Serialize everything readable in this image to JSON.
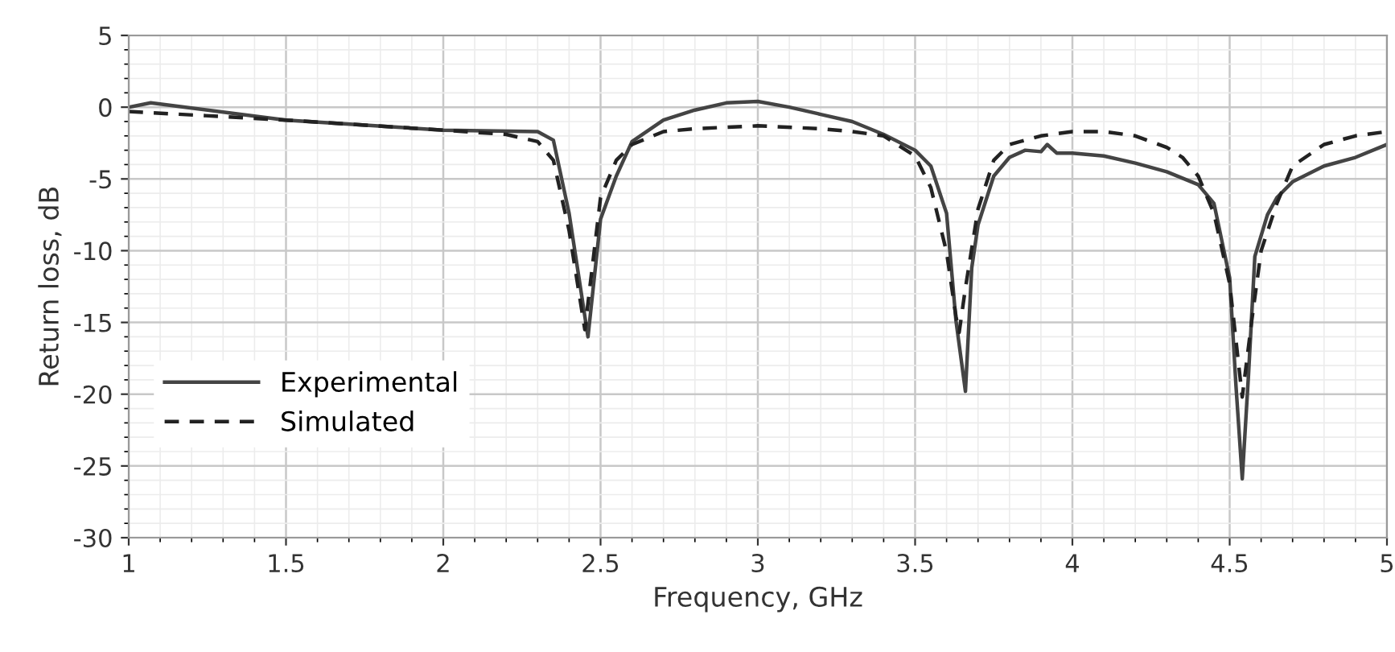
{
  "chart_data": {
    "type": "line",
    "xlabel": "Frequency, GHz",
    "ylabel": "Return loss, dB",
    "xlim": [
      1,
      5
    ],
    "xticks": [
      1,
      1.5,
      2,
      2.5,
      3,
      3.5,
      4,
      4.5,
      5
    ],
    "ylim": [
      -30,
      5
    ],
    "yticks": [
      -30,
      -25,
      -20,
      -15,
      -10,
      -5,
      0,
      5
    ],
    "grid": true,
    "legend": "bottom left",
    "series": [
      {
        "name": "Experimental",
        "color": "#444444",
        "line_style": "solid",
        "x": [
          1.0,
          1.07,
          1.5,
          2.0,
          2.3,
          2.35,
          2.4,
          2.46,
          2.5,
          2.55,
          2.6,
          2.7,
          2.8,
          2.9,
          3.0,
          3.1,
          3.2,
          3.3,
          3.4,
          3.5,
          3.55,
          3.6,
          3.63,
          3.66,
          3.68,
          3.7,
          3.75,
          3.8,
          3.85,
          3.9,
          3.92,
          3.95,
          4.0,
          4.1,
          4.2,
          4.3,
          4.4,
          4.45,
          4.5,
          4.52,
          4.54,
          4.56,
          4.58,
          4.62,
          4.65,
          4.7,
          4.8,
          4.9,
          5.0
        ],
        "values": [
          0,
          0.3,
          -0.9,
          -1.6,
          -1.7,
          -2.3,
          -7.4,
          -16,
          -7.8,
          -4.8,
          -2.4,
          -0.9,
          -0.2,
          0.3,
          0.4,
          0,
          -0.5,
          -1.0,
          -1.9,
          -3.0,
          -4.1,
          -7.4,
          -14.9,
          -19.8,
          -11.2,
          -8.2,
          -4.8,
          -3.5,
          -3.0,
          -3.1,
          -2.6,
          -3.2,
          -3.2,
          -3.4,
          -3.9,
          -4.5,
          -5.4,
          -6.7,
          -11.9,
          -19.4,
          -25.9,
          -18.6,
          -10.4,
          -7.5,
          -6.3,
          -5.2,
          -4.1,
          -3.5,
          -2.6
        ]
      },
      {
        "name": "Simulated",
        "color": "#222222",
        "line_style": "dashed",
        "x": [
          1.0,
          1.5,
          2.0,
          2.2,
          2.3,
          2.35,
          2.4,
          2.45,
          2.5,
          2.55,
          2.6,
          2.7,
          2.8,
          3.0,
          3.2,
          3.3,
          3.4,
          3.5,
          3.55,
          3.6,
          3.63,
          3.64,
          3.66,
          3.7,
          3.75,
          3.8,
          3.9,
          4.0,
          4.1,
          4.2,
          4.3,
          4.35,
          4.4,
          4.45,
          4.5,
          4.54,
          4.57,
          4.6,
          4.65,
          4.7,
          4.8,
          4.9,
          5.0
        ],
        "values": [
          -0.3,
          -0.9,
          -1.6,
          -1.9,
          -2.4,
          -3.7,
          -8.6,
          -15.5,
          -6.3,
          -3.7,
          -2.6,
          -1.7,
          -1.5,
          -1.3,
          -1.5,
          -1.7,
          -2.0,
          -3.4,
          -5.6,
          -10.1,
          -14.6,
          -15.7,
          -12.6,
          -7.1,
          -3.7,
          -2.6,
          -2.0,
          -1.7,
          -1.7,
          -2.0,
          -2.8,
          -3.5,
          -4.8,
          -7.4,
          -12.3,
          -20.2,
          -14.9,
          -10.0,
          -6.7,
          -4.1,
          -2.6,
          -2.0,
          -1.7
        ]
      }
    ]
  }
}
